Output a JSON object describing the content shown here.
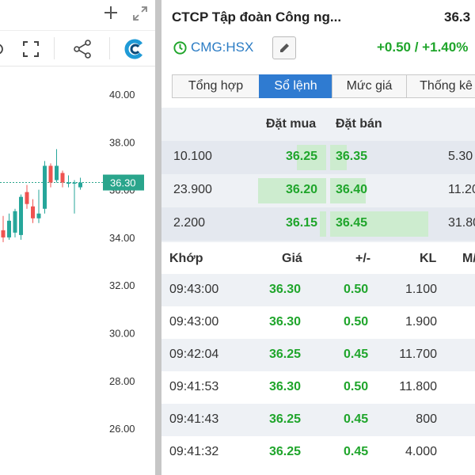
{
  "chart": {
    "price_ticks": [
      "40.00",
      "38.00",
      "36.00",
      "34.00",
      "32.00",
      "30.00",
      "28.00",
      "26.00"
    ],
    "current_price_label": "36.30",
    "colors": {
      "up": "#26a69a",
      "down": "#ef5350",
      "price_tag": "#2aa58c"
    }
  },
  "chart_data": {
    "type": "candlestick",
    "ylim": [
      25,
      41
    ],
    "current_price": 36.3,
    "candles": [
      {
        "o": 34.3,
        "h": 34.9,
        "l": 33.8,
        "c": 34.0
      },
      {
        "o": 34.0,
        "h": 35.0,
        "l": 33.9,
        "c": 34.7
      },
      {
        "o": 34.2,
        "h": 35.2,
        "l": 34.0,
        "c": 35.1
      },
      {
        "o": 34.1,
        "h": 35.8,
        "l": 33.9,
        "c": 35.7
      },
      {
        "o": 35.9,
        "h": 36.2,
        "l": 35.2,
        "c": 35.4
      },
      {
        "o": 35.3,
        "h": 35.6,
        "l": 34.6,
        "c": 34.8
      },
      {
        "o": 34.8,
        "h": 36.0,
        "l": 34.6,
        "c": 35.0
      },
      {
        "o": 35.2,
        "h": 37.2,
        "l": 35.0,
        "c": 37.0
      },
      {
        "o": 37.0,
        "h": 37.1,
        "l": 36.1,
        "c": 36.3
      },
      {
        "o": 36.4,
        "h": 37.7,
        "l": 36.3,
        "c": 37.0
      },
      {
        "o": 36.7,
        "h": 36.8,
        "l": 36.1,
        "c": 36.3
      },
      {
        "o": 36.3,
        "h": 36.6,
        "l": 36.1,
        "c": 36.3
      },
      {
        "o": 36.3,
        "h": 36.4,
        "l": 35.0,
        "c": 36.3
      },
      {
        "o": 36.1,
        "h": 36.5,
        "l": 36.0,
        "c": 36.3
      }
    ]
  },
  "header": {
    "company": "CTCP Tập đoàn Công ng...",
    "price": "36.3",
    "ticker": "CMG:HSX",
    "change": "+0.50 / +1.40%"
  },
  "tabs": [
    "Tổng hợp",
    "Sổ lệnh",
    "Mức giá",
    "Thống kê"
  ],
  "active_tab": "Sổ lệnh",
  "order_book": {
    "bid_header": "Đặt mua",
    "ask_header": "Đặt bán",
    "rows": [
      {
        "bid_vol": "10.100",
        "bid": "36.25",
        "ask": "36.35",
        "ask_vol": "5.30",
        "bid_fill": 0.4,
        "ask_fill": 0.17
      },
      {
        "bid_vol": "23.900",
        "bid": "36.20",
        "ask": "36.40",
        "ask_vol": "11.20",
        "bid_fill": 0.93,
        "ask_fill": 0.36
      },
      {
        "bid_vol": "2.200",
        "bid": "36.15",
        "ask": "36.45",
        "ask_vol": "31.80",
        "bid_fill": 0.09,
        "ask_fill": 1.0
      }
    ]
  },
  "trades": {
    "headers": [
      "Khớp",
      "Giá",
      "+/-",
      "KL",
      "M/"
    ],
    "rows": [
      {
        "time": "09:43:00",
        "price": "36.30",
        "chg": "0.50",
        "vol": "1.100"
      },
      {
        "time": "09:43:00",
        "price": "36.30",
        "chg": "0.50",
        "vol": "1.900"
      },
      {
        "time": "09:42:04",
        "price": "36.25",
        "chg": "0.45",
        "vol": "11.700"
      },
      {
        "time": "09:41:53",
        "price": "36.30",
        "chg": "0.50",
        "vol": "11.800"
      },
      {
        "time": "09:41:43",
        "price": "36.25",
        "chg": "0.45",
        "vol": "800"
      },
      {
        "time": "09:41:32",
        "price": "36.25",
        "chg": "0.45",
        "vol": "4.000"
      }
    ]
  }
}
